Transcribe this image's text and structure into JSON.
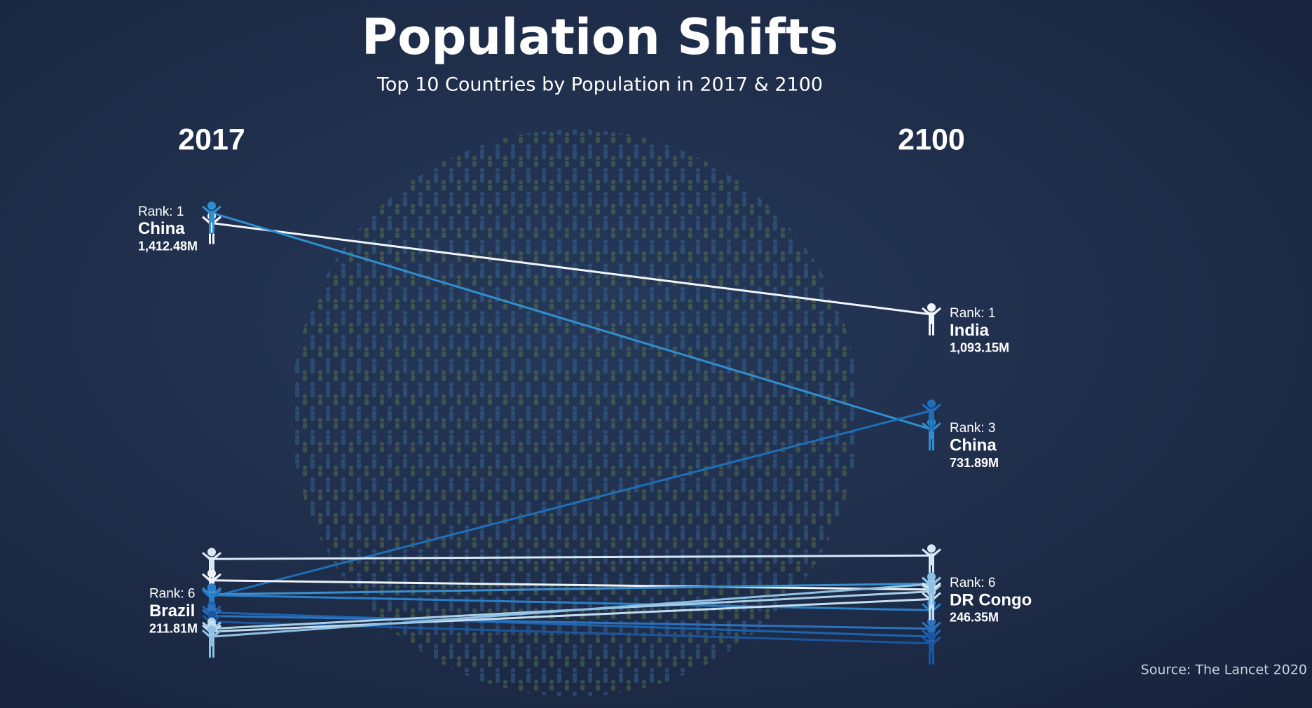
{
  "chart_data": {
    "type": "slope",
    "title": "Population Shifts",
    "subtitle": "Top 10 Countries by Population in 2017 & 2100",
    "categories": [
      "2017",
      "2100"
    ],
    "ylim": [
      0,
      1500
    ],
    "source": "Source: The Lancet 2020",
    "series": [
      {
        "color": "#f2f6fa",
        "values": [
          1380,
          1093.15
        ],
        "end_label": {
          "rank": "Rank: 1",
          "name": "India",
          "value_label": "1,093.15M"
        }
      },
      {
        "color": "#2f8fd0",
        "values": [
          1412.48,
          731.89
        ],
        "start_label": {
          "rank": "Rank: 1",
          "name": "China",
          "value_label": "1,412.48M"
        },
        "end_label": {
          "rank": "Rank: 3",
          "name": "China",
          "value_label": "731.89M"
        }
      },
      {
        "color": "#1f6fb8",
        "values": [
          206,
          791
        ]
      },
      {
        "color": "#d8e8f5",
        "values": [
          325,
          336
        ]
      },
      {
        "color": "#eef3f8",
        "values": [
          258,
          229
        ]
      },
      {
        "color": "#3a8fd0",
        "values": [
          214,
          248
        ]
      },
      {
        "color": "#2a7fc8",
        "values": [
          211.81,
          164
        ],
        "start_label": {
          "rank": "Rank: 6",
          "name": "Brazil",
          "value_label": "211.81M"
        }
      },
      {
        "color": "#1c63b0",
        "values": [
          157,
          81
        ]
      },
      {
        "color": "#2d72bd",
        "values": [
          146,
          106
        ]
      },
      {
        "color": "#1a56a0",
        "values": [
          128,
          60
        ]
      },
      {
        "color": "#a9cfe9",
        "values": [
          106,
          223
        ]
      },
      {
        "color": "#c4def0",
        "values": [
          97,
          199
        ]
      },
      {
        "color": "#8ec1e4",
        "values": [
          81,
          246.35
        ],
        "end_label": {
          "rank": "Rank: 6",
          "name": "DR Congo",
          "value_label": "246.35M"
        }
      }
    ]
  }
}
